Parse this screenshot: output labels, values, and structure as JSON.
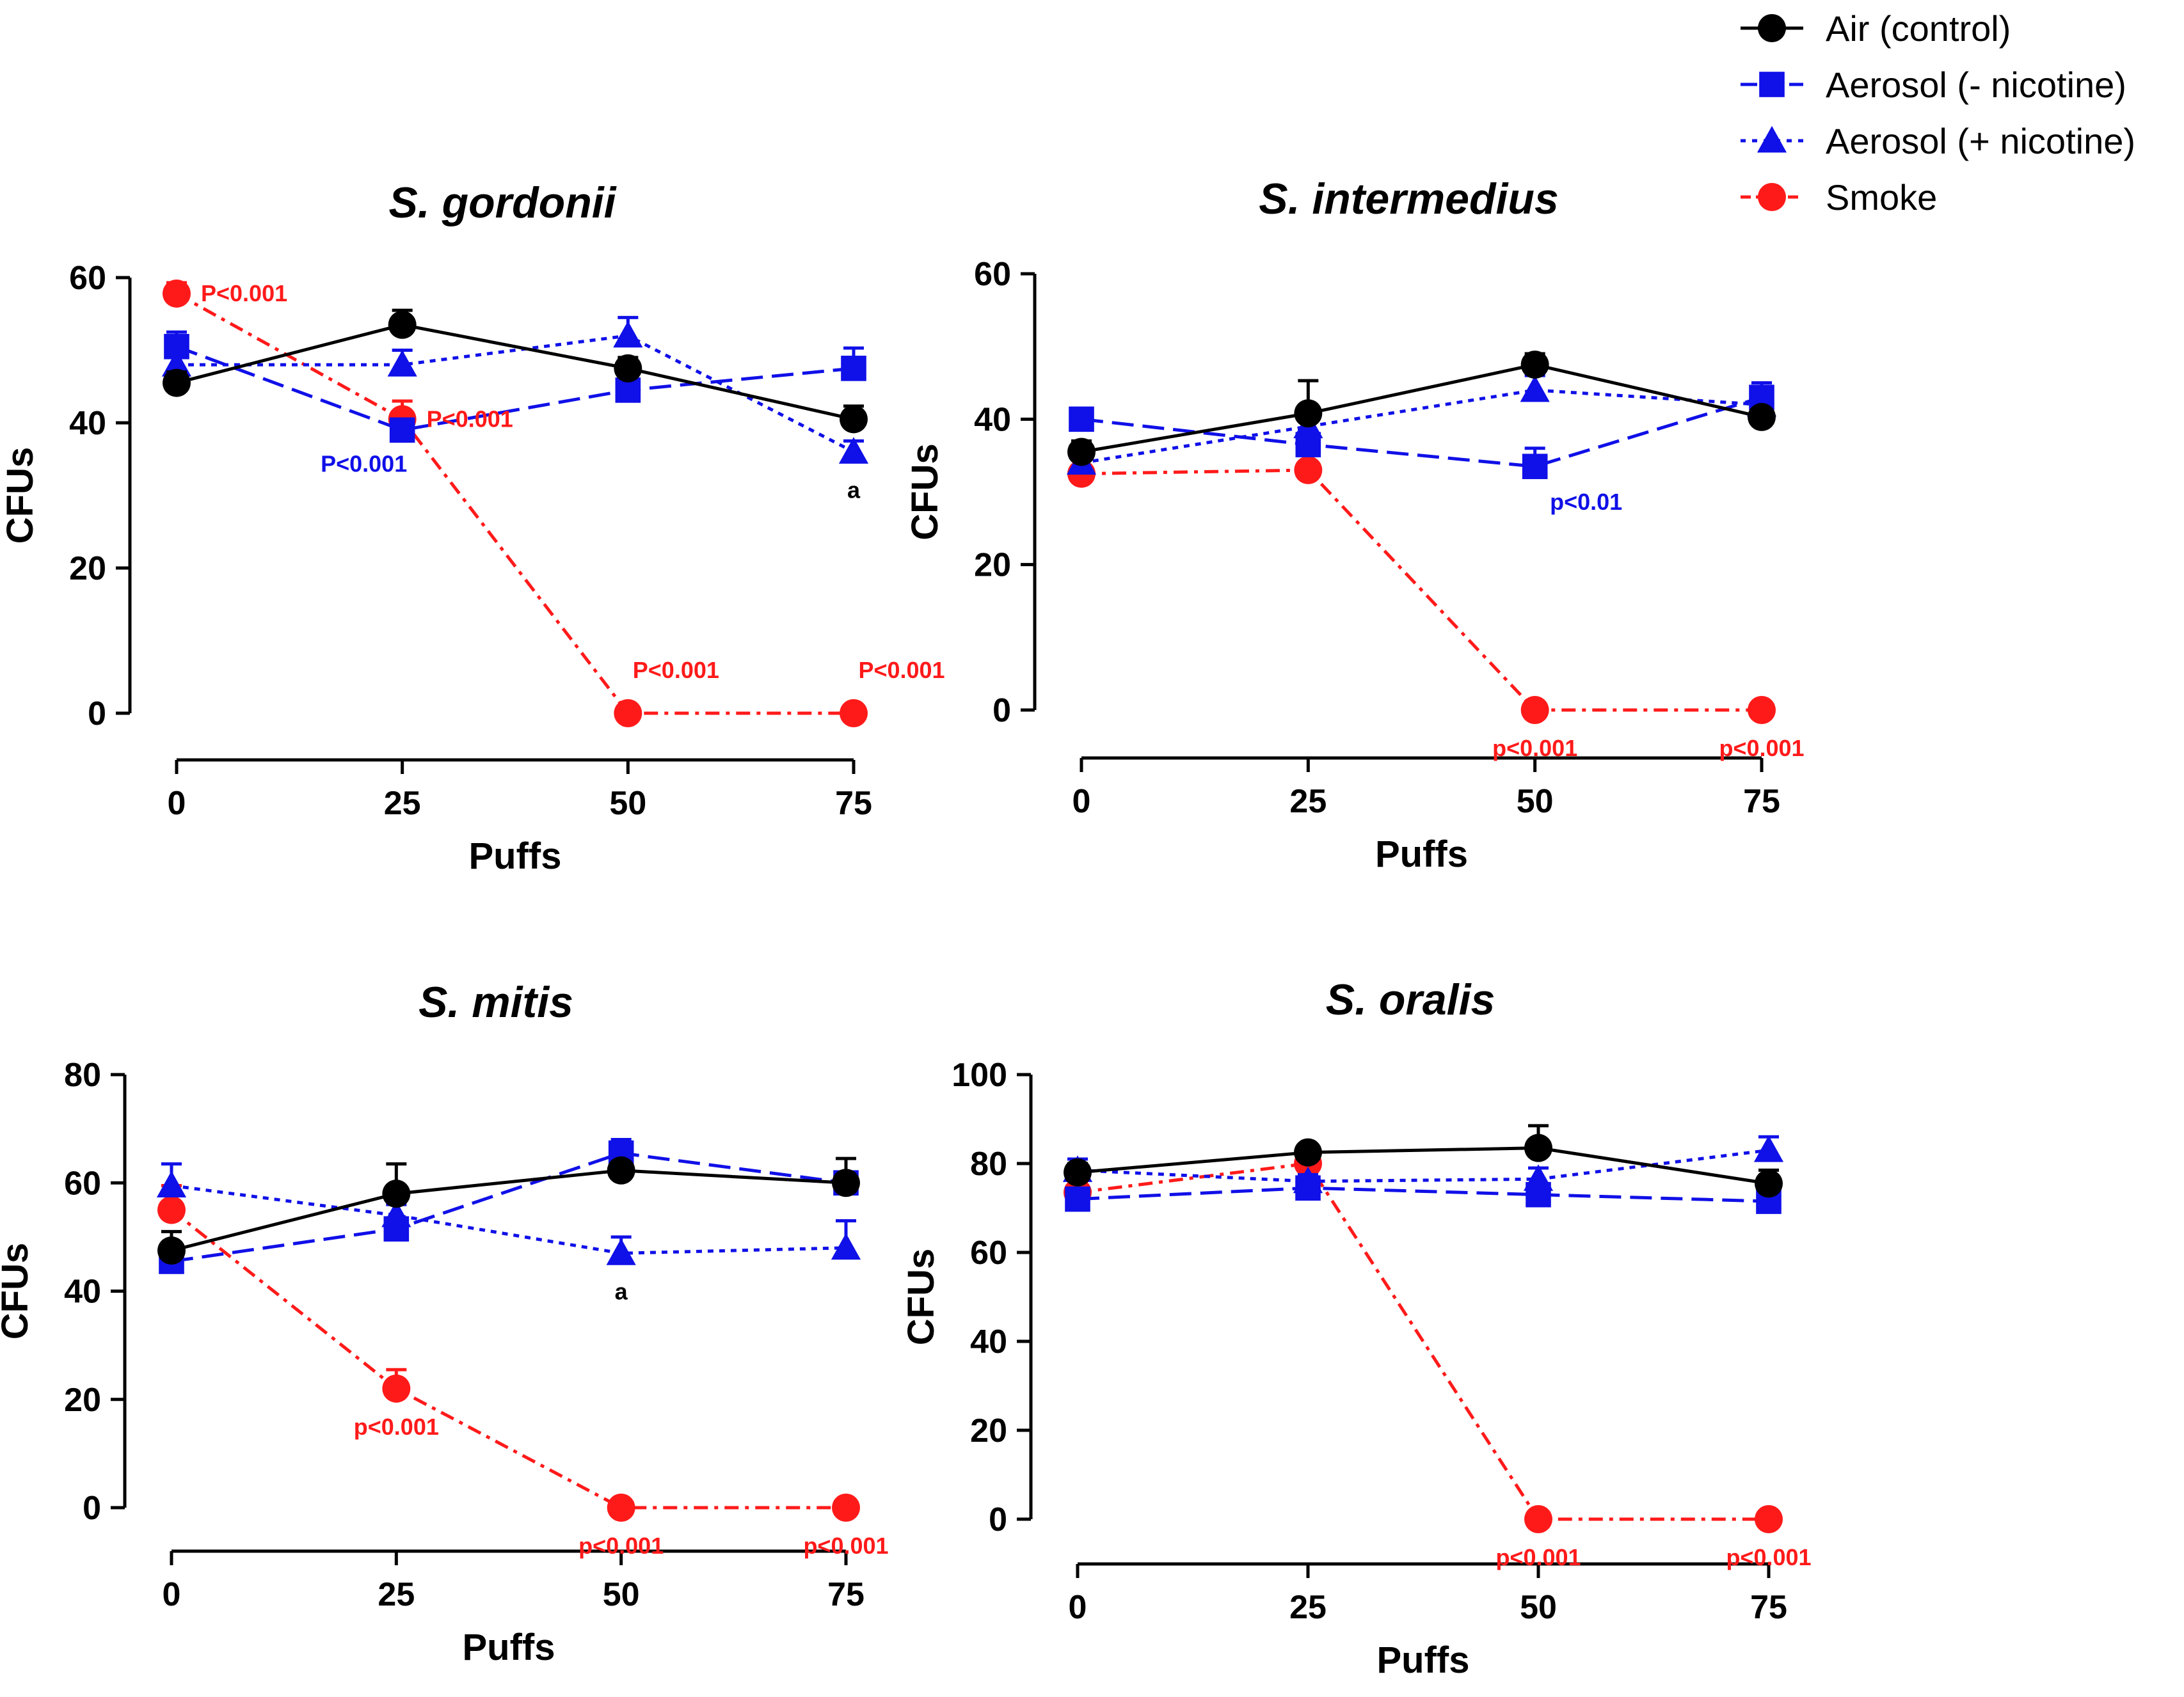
{
  "legend": {
    "items": [
      {
        "label": "Air (control)",
        "marker": "circle",
        "color": "#000000",
        "dash": "solid"
      },
      {
        "label": "Aerosol (- nicotine)",
        "marker": "square",
        "color": "#1010e8",
        "dash": "longdash"
      },
      {
        "label": "Aerosol (+ nicotine)",
        "marker": "triangle",
        "color": "#1010e8",
        "dash": "dotted"
      },
      {
        "label": "Smoke",
        "marker": "circle",
        "color": "#ff1a1a",
        "dash": "dashdot"
      }
    ]
  },
  "chart_data": [
    {
      "type": "line",
      "title": "S. gordonii",
      "xlabel": "Puffs",
      "ylabel": "CFUs",
      "x": [
        0,
        25,
        50,
        75
      ],
      "xticks": [
        "0",
        "25",
        "50",
        "75"
      ],
      "ylim": [
        0,
        60
      ],
      "yticks": [
        "0",
        "20",
        "40",
        "60"
      ],
      "series": [
        {
          "name": "Air (control)",
          "values": [
            45.5,
            53.5,
            47.5,
            40.5
          ],
          "errors": [
            1.5,
            2.0,
            1.5,
            1.8
          ]
        },
        {
          "name": "Aerosol (- nicotine)",
          "values": [
            50.5,
            39.0,
            44.5,
            47.5
          ],
          "errors": [
            2.0,
            1.0,
            1.0,
            2.8
          ]
        },
        {
          "name": "Aerosol (+ nicotine)",
          "values": [
            48.0,
            48.0,
            52.0,
            36.0
          ],
          "errors": [
            1.5,
            2.0,
            2.5,
            1.5
          ]
        },
        {
          "name": "Smoke",
          "values": [
            57.8,
            40.5,
            0,
            0
          ],
          "errors": [
            1.5,
            2.5,
            0,
            0
          ]
        }
      ],
      "annotations": [
        {
          "text": "P<0.001",
          "series": "Smoke",
          "x": 0,
          "position": "right",
          "color": "#ff1a1a"
        },
        {
          "text": "P<0.001",
          "series": "Smoke",
          "x": 25,
          "position": "right",
          "color": "#ff1a1a"
        },
        {
          "text": "P<0.001",
          "series": "Aerosol (- nicotine)",
          "x": 25,
          "position": "below-left",
          "color": "#1010e8"
        },
        {
          "text": "P<0.001",
          "series": "Smoke",
          "x": 50,
          "position": "above",
          "color": "#ff1a1a"
        },
        {
          "text": "P<0.001",
          "series": "Smoke",
          "x": 75,
          "position": "above",
          "color": "#ff1a1a"
        },
        {
          "text": "a",
          "series": "Aerosol (+ nicotine)",
          "x": 75,
          "position": "below",
          "color": "#000000"
        }
      ]
    },
    {
      "type": "line",
      "title": "S. intermedius",
      "xlabel": "Puffs",
      "ylabel": "CFUs",
      "x": [
        0,
        25,
        50,
        75
      ],
      "xticks": [
        "0",
        "25",
        "50",
        "75"
      ],
      "ylim": [
        0,
        60
      ],
      "yticks": [
        "0",
        "20",
        "40",
        "60"
      ],
      "series": [
        {
          "name": "Air (control)",
          "values": [
            35.5,
            40.8,
            47.5,
            40.3
          ],
          "errors": [
            1.5,
            4.5,
            1.5,
            1.0
          ]
        },
        {
          "name": "Aerosol (- nicotine)",
          "values": [
            40.0,
            36.5,
            33.5,
            43.0
          ],
          "errors": [
            1.0,
            1.2,
            2.5,
            2.0
          ]
        },
        {
          "name": "Aerosol (+ nicotine)",
          "values": [
            34.0,
            39.0,
            44.0,
            42.0
          ],
          "errors": [
            1.0,
            2.5,
            2.0,
            2.0
          ]
        },
        {
          "name": "Smoke",
          "values": [
            32.5,
            33.0,
            0,
            0
          ],
          "errors": [
            0.5,
            0.5,
            0,
            0
          ]
        }
      ],
      "annotations": [
        {
          "text": "p<0.01",
          "series": "Aerosol (- nicotine)",
          "x": 50,
          "position": "below-right",
          "color": "#1010e8"
        },
        {
          "text": "p<0.001",
          "series": "Smoke",
          "x": 50,
          "position": "below",
          "color": "#ff1a1a"
        },
        {
          "text": "p<0.001",
          "series": "Smoke",
          "x": 75,
          "position": "below",
          "color": "#ff1a1a"
        }
      ]
    },
    {
      "type": "line",
      "title": "S. mitis",
      "xlabel": "Puffs",
      "ylabel": "CFUs",
      "x": [
        0,
        25,
        50,
        75
      ],
      "xticks": [
        "0",
        "25",
        "50",
        "75"
      ],
      "ylim": [
        0,
        80
      ],
      "yticks": [
        "0",
        "20",
        "40",
        "60",
        "80"
      ],
      "series": [
        {
          "name": "Air (control)",
          "values": [
            47.5,
            58.0,
            62.3,
            60.0
          ],
          "errors": [
            3.5,
            5.5,
            1.5,
            4.5
          ]
        },
        {
          "name": "Aerosol (- nicotine)",
          "values": [
            45.5,
            51.5,
            65.5,
            60.0
          ],
          "errors": [
            1.5,
            1.5,
            2.5,
            2.0
          ]
        },
        {
          "name": "Aerosol (+ nicotine)",
          "values": [
            59.5,
            54.0,
            47.0,
            48.0
          ],
          "errors": [
            4.0,
            2.0,
            3.0,
            5.0
          ]
        },
        {
          "name": "Smoke",
          "values": [
            55.0,
            22.0,
            0,
            0
          ],
          "errors": [
            4.5,
            3.5,
            0,
            0
          ]
        }
      ],
      "annotations": [
        {
          "text": "a",
          "series": "Aerosol (+ nicotine)",
          "x": 50,
          "position": "below",
          "color": "#000000"
        },
        {
          "text": "p<0.001",
          "series": "Smoke",
          "x": 25,
          "position": "below",
          "color": "#ff1a1a"
        },
        {
          "text": "p<0.001",
          "series": "Smoke",
          "x": 50,
          "position": "below",
          "color": "#ff1a1a"
        },
        {
          "text": "p<0.001",
          "series": "Smoke",
          "x": 75,
          "position": "below",
          "color": "#ff1a1a"
        }
      ]
    },
    {
      "type": "line",
      "title": "S. oralis",
      "xlabel": "Puffs",
      "ylabel": "CFUs",
      "x": [
        0,
        25,
        50,
        75
      ],
      "xticks": [
        "0",
        "25",
        "50",
        "75"
      ],
      "ylim": [
        0,
        100
      ],
      "yticks": [
        "0",
        "20",
        "40",
        "60",
        "80",
        "100"
      ],
      "series": [
        {
          "name": "Air (control)",
          "values": [
            78.0,
            82.5,
            83.5,
            75.5
          ],
          "errors": [
            2.0,
            1.5,
            5.0,
            3.0
          ]
        },
        {
          "name": "Aerosol (- nicotine)",
          "values": [
            72.0,
            74.5,
            73.0,
            71.5
          ],
          "errors": [
            2.0,
            1.5,
            1.5,
            1.5
          ]
        },
        {
          "name": "Aerosol (+ nicotine)",
          "values": [
            78.5,
            76.0,
            76.5,
            83.0
          ],
          "errors": [
            2.5,
            1.5,
            2.5,
            3.0
          ]
        },
        {
          "name": "Smoke",
          "values": [
            73.5,
            80.0,
            0,
            0
          ],
          "errors": [
            2.0,
            2.0,
            0,
            0
          ]
        }
      ],
      "annotations": [
        {
          "text": "p<0.001",
          "series": "Smoke",
          "x": 50,
          "position": "below",
          "color": "#ff1a1a"
        },
        {
          "text": "p<0.001",
          "series": "Smoke",
          "x": 75,
          "position": "below",
          "color": "#ff1a1a"
        }
      ]
    }
  ]
}
